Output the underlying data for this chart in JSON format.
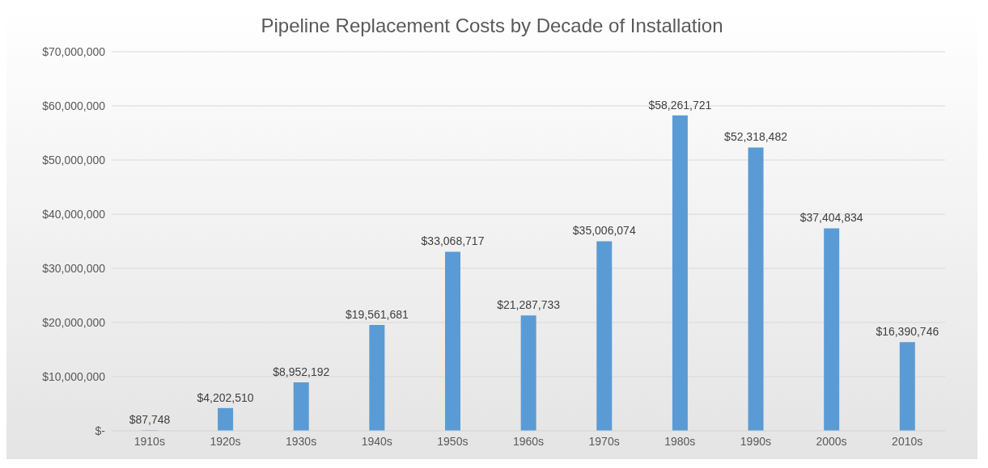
{
  "chart_data": {
    "type": "bar",
    "title": "Pipeline Replacement Costs by Decade of Installation",
    "categories": [
      "1910s",
      "1920s",
      "1930s",
      "1940s",
      "1950s",
      "1960s",
      "1970s",
      "1980s",
      "1990s",
      "2000s",
      "2010s"
    ],
    "values": [
      87748,
      4202510,
      8952192,
      19561681,
      33068717,
      21287733,
      35006074,
      58261721,
      52318482,
      37404834,
      16390746
    ],
    "value_labels": [
      "$87,748",
      "$4,202,510",
      "$8,952,192",
      "$19,561,681",
      "$33,068,717",
      "$21,287,733",
      "$35,006,074",
      "$58,261,721",
      "$52,318,482",
      "$37,404,834",
      "$16,390,746"
    ],
    "color": "#5b9bd5",
    "ylim": [
      0,
      70000000
    ],
    "yticks": [
      {
        "value": 0,
        "label": "$-"
      },
      {
        "value": 10000000,
        "label": "$10,000,000"
      },
      {
        "value": 20000000,
        "label": "$20,000,000"
      },
      {
        "value": 30000000,
        "label": "$30,000,000"
      },
      {
        "value": 40000000,
        "label": "$40,000,000"
      },
      {
        "value": 50000000,
        "label": "$50,000,000"
      },
      {
        "value": 60000000,
        "label": "$60,000,000"
      },
      {
        "value": 70000000,
        "label": "$70,000,000"
      }
    ],
    "grid": "y",
    "legend": false
  }
}
